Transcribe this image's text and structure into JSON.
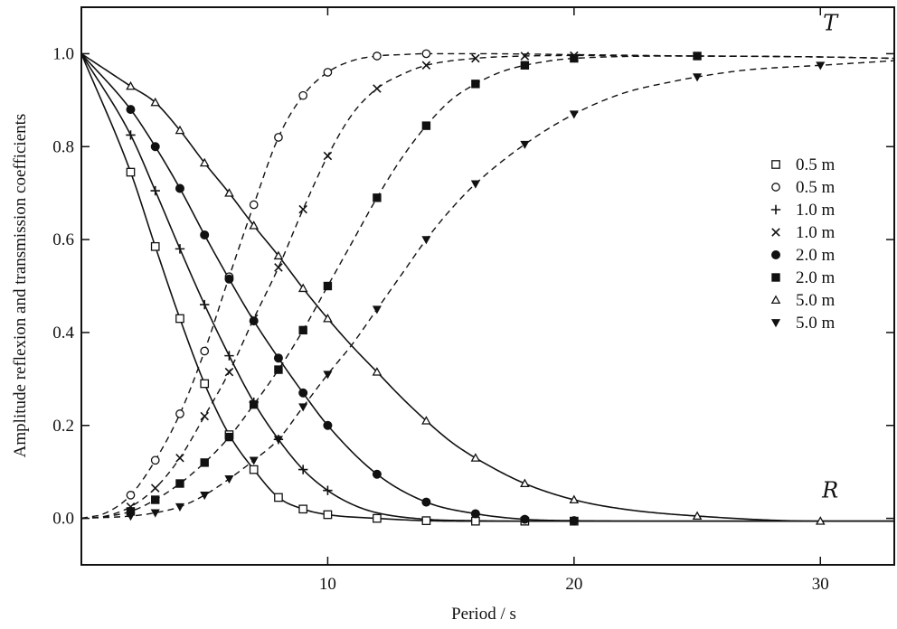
{
  "chart_data": {
    "type": "line",
    "title": "",
    "xlabel": "Period / s",
    "ylabel": "Amplitude reflexion and transmission coefficients",
    "xlim": [
      0,
      33
    ],
    "ylim": [
      -0.1,
      1.1
    ],
    "x_ticks": [
      10,
      20,
      30
    ],
    "x_tick_labels": [
      "10",
      "20",
      "30"
    ],
    "y_ticks": [
      0.0,
      0.2,
      0.4,
      0.6,
      0.8,
      1.0
    ],
    "y_tick_labels": [
      "0.0",
      "0.2",
      "0.4",
      "0.6",
      "0.8",
      "1.0"
    ],
    "grid": false,
    "legend_position": "right",
    "curve_labels": [
      {
        "text": "T",
        "x": 30.4,
        "y": 1.05
      },
      {
        "text": "R",
        "x": 30.4,
        "y": 0.045
      }
    ],
    "series": [
      {
        "name": "0.5 m",
        "coefficient": "reflexion",
        "line": "solid",
        "marker": "square-open",
        "x": [
          0,
          2,
          3,
          4,
          5,
          6,
          7,
          8,
          9,
          10,
          12,
          14,
          16,
          18,
          20,
          25,
          30,
          33
        ],
        "y": [
          1.0,
          0.745,
          0.585,
          0.43,
          0.29,
          0.18,
          0.105,
          0.045,
          0.02,
          0.008,
          0.0,
          -0.005,
          -0.006,
          -0.006,
          -0.006,
          -0.006,
          -0.006,
          -0.006
        ],
        "marker_x": [
          2,
          3,
          4,
          5,
          6,
          7,
          8,
          9,
          10,
          12,
          14,
          16,
          18,
          20
        ]
      },
      {
        "name": "0.5 m",
        "coefficient": "transmission",
        "line": "dashed",
        "marker": "circle-open",
        "x": [
          0,
          1,
          2,
          3,
          4,
          5,
          6,
          7,
          8,
          9,
          10,
          11,
          12,
          13,
          14,
          16,
          20,
          25,
          30,
          33
        ],
        "y": [
          0.0,
          0.012,
          0.05,
          0.125,
          0.225,
          0.36,
          0.52,
          0.675,
          0.82,
          0.91,
          0.96,
          0.985,
          0.995,
          0.998,
          1.0,
          1.0,
          0.998,
          0.995,
          0.993,
          0.99
        ],
        "marker_x": [
          2,
          3,
          4,
          5,
          6,
          7,
          8,
          9,
          10,
          12,
          14
        ]
      },
      {
        "name": "1.0 m",
        "coefficient": "reflexion",
        "line": "solid",
        "marker": "plus",
        "x": [
          0,
          2,
          3,
          4,
          5,
          6,
          7,
          8,
          9,
          10,
          11,
          12,
          14,
          16,
          18,
          20,
          25,
          30,
          33
        ],
        "y": [
          1.0,
          0.825,
          0.705,
          0.58,
          0.46,
          0.35,
          0.25,
          0.17,
          0.105,
          0.06,
          0.03,
          0.012,
          -0.002,
          -0.005,
          -0.006,
          -0.006,
          -0.006,
          -0.006,
          -0.006
        ],
        "marker_x": [
          2,
          3,
          4,
          5,
          6,
          7,
          8,
          9,
          10
        ]
      },
      {
        "name": "1.0 m",
        "coefficient": "transmission",
        "line": "dashed",
        "marker": "cross",
        "x": [
          0,
          1,
          2,
          3,
          4,
          5,
          6,
          7,
          8,
          9,
          10,
          11,
          12,
          13,
          14,
          16,
          18,
          20,
          25,
          30,
          33
        ],
        "y": [
          0.0,
          0.005,
          0.025,
          0.065,
          0.13,
          0.22,
          0.315,
          0.43,
          0.54,
          0.665,
          0.78,
          0.87,
          0.925,
          0.955,
          0.975,
          0.99,
          0.995,
          0.996,
          0.995,
          0.993,
          0.99
        ],
        "marker_x": [
          2,
          3,
          4,
          5,
          6,
          7,
          8,
          9,
          10,
          12,
          14,
          16,
          18,
          20
        ]
      },
      {
        "name": "2.0 m",
        "coefficient": "reflexion",
        "line": "solid",
        "marker": "circle-filled",
        "x": [
          0,
          2,
          3,
          4,
          5,
          6,
          7,
          8,
          9,
          10,
          12,
          14,
          16,
          18,
          20,
          25,
          30,
          33
        ],
        "y": [
          1.0,
          0.88,
          0.8,
          0.71,
          0.61,
          0.515,
          0.425,
          0.345,
          0.27,
          0.2,
          0.095,
          0.035,
          0.01,
          -0.002,
          -0.005,
          -0.006,
          -0.006,
          -0.006
        ],
        "marker_x": [
          2,
          3,
          4,
          5,
          6,
          7,
          8,
          9,
          10,
          12,
          14,
          16,
          18,
          20
        ]
      },
      {
        "name": "2.0 m",
        "coefficient": "transmission",
        "line": "dashed",
        "marker": "square-filled",
        "x": [
          0,
          1,
          2,
          3,
          4,
          5,
          6,
          7,
          8,
          9,
          10,
          11,
          12,
          13,
          14,
          15,
          16,
          17,
          18,
          20,
          25,
          30,
          33
        ],
        "y": [
          0.0,
          0.004,
          0.015,
          0.04,
          0.075,
          0.12,
          0.175,
          0.245,
          0.32,
          0.405,
          0.5,
          0.595,
          0.69,
          0.775,
          0.845,
          0.9,
          0.935,
          0.96,
          0.975,
          0.99,
          0.995,
          0.993,
          0.99
        ],
        "marker_x": [
          2,
          3,
          4,
          5,
          6,
          7,
          8,
          9,
          10,
          12,
          14,
          16,
          18,
          20,
          25
        ]
      },
      {
        "name": "5.0 m",
        "coefficient": "reflexion",
        "line": "solid",
        "marker": "triangle-up",
        "x": [
          0,
          2,
          3,
          4,
          5,
          6,
          7,
          8,
          9,
          10,
          11,
          12,
          13,
          14,
          15,
          16,
          18,
          20,
          22,
          25,
          30,
          33
        ],
        "y": [
          1.0,
          0.93,
          0.895,
          0.835,
          0.765,
          0.7,
          0.63,
          0.565,
          0.495,
          0.43,
          0.37,
          0.315,
          0.26,
          0.21,
          0.165,
          0.13,
          0.075,
          0.04,
          0.02,
          0.005,
          -0.006,
          -0.006
        ],
        "marker_x": [
          2,
          3,
          4,
          5,
          6,
          7,
          8,
          9,
          10,
          12,
          14,
          16,
          18,
          20,
          25,
          30
        ]
      },
      {
        "name": "5.0 m",
        "coefficient": "transmission",
        "line": "dashed",
        "marker": "triangle-down",
        "x": [
          0,
          2,
          3,
          4,
          5,
          6,
          7,
          8,
          9,
          10,
          11,
          12,
          13,
          14,
          15,
          16,
          18,
          20,
          22,
          24,
          25,
          27,
          30,
          33
        ],
        "y": [
          0.0,
          0.005,
          0.012,
          0.025,
          0.05,
          0.085,
          0.125,
          0.17,
          0.24,
          0.31,
          0.375,
          0.45,
          0.525,
          0.6,
          0.665,
          0.72,
          0.805,
          0.87,
          0.915,
          0.94,
          0.95,
          0.965,
          0.975,
          0.985
        ],
        "marker_x": [
          2,
          3,
          4,
          5,
          6,
          7,
          8,
          9,
          10,
          12,
          14,
          16,
          18,
          20,
          25,
          30
        ]
      }
    ]
  }
}
